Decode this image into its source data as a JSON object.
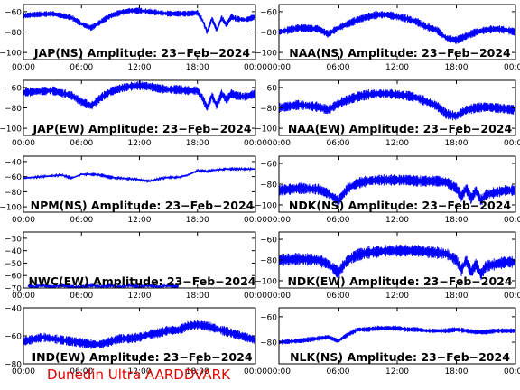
{
  "footer_text": "Dunedin Ultra AARDDVARK",
  "colors": {
    "trace": "#0000ff",
    "axis": "#000000",
    "footer": "#e00000",
    "background": "#ffffff"
  },
  "chart_data": [
    {
      "type": "line",
      "id": "jap-ns",
      "title": "JAP(NS) Amplitude: 23−Feb−2024",
      "x_ticks": [
        "00:00",
        "06:00",
        "12:00",
        "18:00",
        "00:00"
      ],
      "x_range_hours": [
        0,
        24
      ],
      "y_ticks": [
        "−100",
        "−80",
        "−60"
      ],
      "y_tick_values": [
        -100,
        -80,
        -60
      ],
      "ylim": [
        -107,
        -53
      ],
      "series": [
        {
          "x": [
            0,
            1,
            3,
            5,
            6,
            7,
            8,
            9,
            10,
            11,
            12,
            13,
            14,
            15,
            16,
            17,
            18,
            18.5,
            19,
            19.5,
            20,
            20.5,
            21,
            21.5,
            22,
            23,
            24
          ],
          "y": [
            -64,
            -63,
            -62,
            -66,
            -72,
            -76,
            -70,
            -64,
            -61,
            -59,
            -59,
            -60,
            -61,
            -62,
            -62,
            -62,
            -61,
            -68,
            -80,
            -67,
            -78,
            -66,
            -73,
            -65,
            -67,
            -68,
            -65
          ],
          "band": 6
        }
      ]
    },
    {
      "type": "line",
      "id": "naa-ns",
      "title": "NAA(NS) Amplitude: 23−Feb−2024",
      "x_ticks": [
        "00:00",
        "06:00",
        "12:00",
        "18:00",
        "00:00"
      ],
      "x_range_hours": [
        0,
        24
      ],
      "y_ticks": [
        "−100",
        "−80",
        "−60"
      ],
      "y_tick_values": [
        -100,
        -80,
        -60
      ],
      "ylim": [
        -107,
        -53
      ],
      "series": [
        {
          "x": [
            0,
            2,
            4,
            5,
            6,
            7,
            8,
            9,
            10,
            11,
            12,
            13,
            14,
            15,
            16,
            17,
            18,
            19,
            20,
            21,
            22,
            23,
            24
          ],
          "y": [
            -80,
            -76,
            -77,
            -82,
            -76,
            -72,
            -68,
            -65,
            -63,
            -63,
            -65,
            -67,
            -70,
            -75,
            -78,
            -86,
            -88,
            -84,
            -80,
            -78,
            -77,
            -78,
            -80
          ],
          "band": 8
        }
      ]
    },
    {
      "type": "line",
      "id": "jap-ew",
      "title": "JAP(EW) Amplitude: 23−Feb−2024",
      "x_ticks": [
        "00:00",
        "06:00",
        "12:00",
        "18:00",
        "00:00"
      ],
      "x_range_hours": [
        0,
        24
      ],
      "y_ticks": [
        "−100",
        "−80",
        "−60"
      ],
      "y_tick_values": [
        -100,
        -80,
        -60
      ],
      "ylim": [
        -107,
        -53
      ],
      "series": [
        {
          "x": [
            0,
            1,
            3,
            5,
            6,
            7,
            8,
            9,
            10,
            11,
            12,
            13,
            14,
            15,
            16,
            17,
            18,
            18.5,
            19,
            19.5,
            20,
            20.5,
            21,
            21.5,
            22,
            23,
            24
          ],
          "y": [
            -65,
            -64,
            -63,
            -68,
            -74,
            -78,
            -70,
            -64,
            -61,
            -59,
            -58,
            -59,
            -61,
            -62,
            -62,
            -63,
            -63,
            -70,
            -80,
            -68,
            -78,
            -66,
            -72,
            -66,
            -68,
            -69,
            -66
          ],
          "band": 9
        }
      ]
    },
    {
      "type": "line",
      "id": "naa-ew",
      "title": "NAA(EW) Amplitude: 23−Feb−2024",
      "x_ticks": [
        "00:00",
        "06:00",
        "12:00",
        "18:00",
        "00:00"
      ],
      "x_range_hours": [
        0,
        24
      ],
      "y_ticks": [
        "−100",
        "−80",
        "−60"
      ],
      "y_tick_values": [
        -100,
        -80,
        -60
      ],
      "ylim": [
        -107,
        -53
      ],
      "series": [
        {
          "x": [
            0,
            2,
            4,
            5,
            6,
            7,
            8,
            9,
            10,
            11,
            12,
            13,
            14,
            15,
            16,
            17,
            18,
            19,
            20,
            21,
            22,
            23,
            24
          ],
          "y": [
            -80,
            -77,
            -79,
            -82,
            -76,
            -72,
            -69,
            -67,
            -66,
            -66,
            -67,
            -68,
            -70,
            -74,
            -78,
            -86,
            -88,
            -82,
            -80,
            -79,
            -80,
            -81,
            -82
          ],
          "band": 10
        }
      ]
    },
    {
      "type": "line",
      "id": "npm-ns",
      "title": "NPM(NS) Amplitude: 23−Feb−2024",
      "x_ticks": [
        "00:00",
        "06:00",
        "12:00",
        "18:00",
        "00:00"
      ],
      "x_range_hours": [
        0,
        24
      ],
      "y_ticks": [
        "−100",
        "−80",
        "−60",
        "−40"
      ],
      "y_tick_values": [
        -100,
        -80,
        -60,
        -40
      ],
      "ylim": [
        -107,
        -33
      ],
      "series": [
        {
          "x": [
            0,
            2,
            4,
            5,
            6,
            7,
            8,
            9,
            10,
            11,
            12,
            13,
            14,
            15,
            16,
            17,
            18,
            19,
            20,
            21,
            22,
            23,
            24
          ],
          "y": [
            -62,
            -60,
            -58,
            -62,
            -57,
            -57,
            -58,
            -61,
            -62,
            -63,
            -64,
            -66,
            -63,
            -61,
            -61,
            -58,
            -52,
            -53,
            -51,
            -50,
            -50,
            -50,
            -50
          ],
          "band": 2
        }
      ]
    },
    {
      "type": "line",
      "id": "ndk-ns",
      "title": "NDK(NS) Amplitude: 23−Feb−2024",
      "x_ticks": [
        "00:00",
        "06:00",
        "12:00",
        "18:00",
        "00:00"
      ],
      "x_range_hours": [
        0,
        24
      ],
      "y_ticks": [
        "−100",
        "−80",
        "−60"
      ],
      "y_tick_values": [
        -100,
        -80,
        -60
      ],
      "ylim": [
        -107,
        -53
      ],
      "series": [
        {
          "x": [
            0,
            2,
            4,
            5,
            6,
            7,
            8,
            9,
            10,
            11,
            12,
            13,
            14,
            15,
            16,
            17,
            18,
            18.5,
            19,
            19.5,
            20,
            20.5,
            21,
            22,
            23,
            24
          ],
          "y": [
            -86,
            -84,
            -85,
            -89,
            -96,
            -84,
            -79,
            -77,
            -76,
            -76,
            -76,
            -76,
            -77,
            -77,
            -77,
            -78,
            -84,
            -92,
            -84,
            -94,
            -86,
            -96,
            -90,
            -88,
            -86,
            -86
          ],
          "band": 11
        }
      ]
    },
    {
      "type": "line",
      "id": "nwc-ew",
      "title": "NWC(EW) Amplitude: 23−Feb−2024",
      "x_ticks": [
        "00:00",
        "06:00",
        "12:00",
        "18:00",
        "00:00"
      ],
      "x_range_hours": [
        0,
        24
      ],
      "y_ticks": [
        "−70",
        "−60",
        "−50",
        "−40",
        "−30"
      ],
      "y_tick_values": [
        -70,
        -60,
        -50,
        -40,
        -30
      ],
      "ylim": [
        -70,
        -25
      ],
      "series": [
        {
          "x": [
            0.5,
            1,
            2,
            3,
            4,
            5,
            6,
            7,
            8,
            9,
            10,
            11,
            12,
            13,
            14,
            15,
            16
          ],
          "y": [
            -68,
            -69,
            -68,
            -69,
            -68,
            -69,
            -69,
            -68,
            -69,
            -68,
            -69,
            -68,
            -69,
            -68,
            -69,
            -68,
            -69
          ],
          "band": 1
        }
      ]
    },
    {
      "type": "line",
      "id": "ndk-ew",
      "title": "NDK(EW) Amplitude: 23−Feb−2024",
      "x_ticks": [
        "00:00",
        "06:00",
        "12:00",
        "18:00",
        "00:00"
      ],
      "x_range_hours": [
        0,
        24
      ],
      "y_ticks": [
        "−100",
        "−80",
        "−60"
      ],
      "y_tick_values": [
        -100,
        -80,
        -60
      ],
      "ylim": [
        -107,
        -53
      ],
      "series": [
        {
          "x": [
            0,
            2,
            4,
            5,
            6,
            7,
            8,
            9,
            10,
            11,
            12,
            13,
            14,
            15,
            16,
            17,
            18,
            18.5,
            19,
            19.5,
            20,
            20.5,
            21,
            22,
            23,
            24
          ],
          "y": [
            -80,
            -79,
            -80,
            -84,
            -92,
            -80,
            -75,
            -73,
            -72,
            -71,
            -71,
            -71,
            -71,
            -72,
            -73,
            -74,
            -80,
            -90,
            -80,
            -92,
            -84,
            -94,
            -86,
            -84,
            -82,
            -82
          ],
          "band": 12
        }
      ]
    },
    {
      "type": "line",
      "id": "ind-ew",
      "title": "IND(EW) Amplitude: 23−Feb−2024",
      "x_ticks": [
        "00:00",
        "06:00",
        "12:00",
        "18:00",
        "00:00"
      ],
      "x_range_hours": [
        0,
        24
      ],
      "y_ticks": [
        "−80",
        "−60",
        "−40"
      ],
      "y_tick_values": [
        -80,
        -60,
        -40
      ],
      "ylim": [
        -80,
        -40
      ],
      "series": [
        {
          "x": [
            0,
            2,
            4,
            6,
            7,
            8,
            9,
            10,
            11,
            12,
            13,
            14,
            15,
            16,
            17,
            18,
            19,
            20,
            21,
            22,
            23,
            24
          ],
          "y": [
            -64,
            -61,
            -63,
            -65,
            -66,
            -66,
            -64,
            -62,
            -62,
            -61,
            -59,
            -58,
            -56,
            -56,
            -53,
            -52,
            -53,
            -55,
            -57,
            -59,
            -61,
            -63
          ],
          "band": 7
        }
      ]
    },
    {
      "type": "line",
      "id": "nlk-ns",
      "title": "NLK(NS) Amplitude: 23−Feb−2024",
      "x_ticks": [
        "00:00",
        "06:00",
        "12:00",
        "18:00",
        "00:00"
      ],
      "x_range_hours": [
        0,
        24
      ],
      "y_ticks": [
        "−80",
        "−60"
      ],
      "y_tick_values": [
        -80,
        -60
      ],
      "ylim": [
        -97,
        -53
      ],
      "series": [
        {
          "x": [
            0,
            2,
            4,
            5,
            6,
            7,
            8,
            9,
            10,
            11,
            12,
            13,
            14,
            15,
            16,
            17,
            18,
            19,
            20,
            21,
            22,
            23,
            24
          ],
          "y": [
            -80,
            -79,
            -77,
            -76,
            -79,
            -74,
            -70,
            -70,
            -69,
            -69,
            -69,
            -70,
            -70,
            -71,
            -71,
            -71,
            -70,
            -71,
            -72,
            -72,
            -71,
            -71,
            -71
          ],
          "band": 4
        }
      ]
    }
  ]
}
